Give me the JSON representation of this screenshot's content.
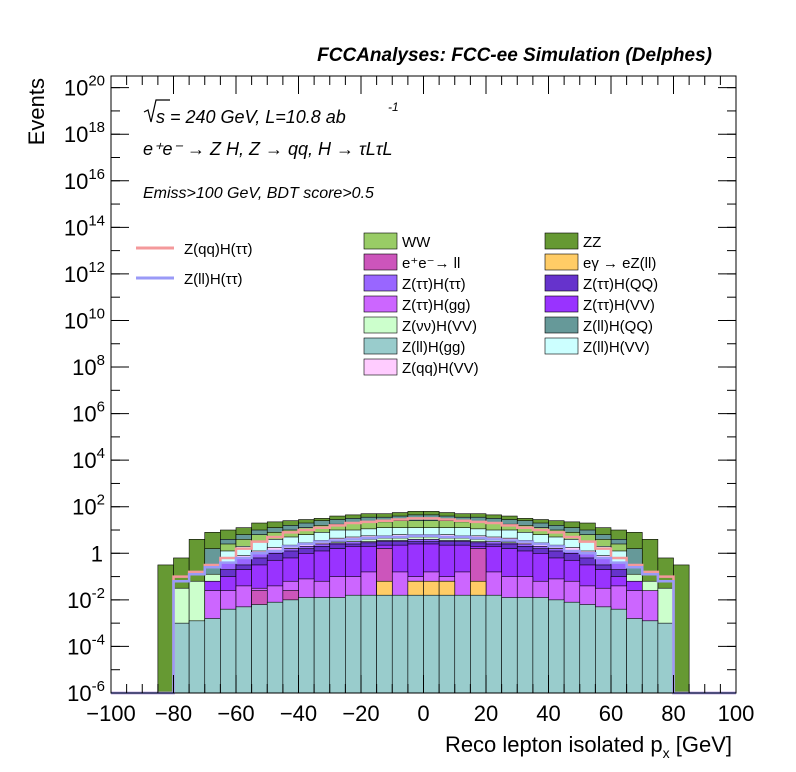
{
  "header": {
    "title": "FCCAnalyses: FCC-ee Simulation (Delphes)"
  },
  "annotations": {
    "sqrt_s": "s = 240 GeV, L=10.8 ab",
    "lumi_exp": "-1",
    "process": "e⁺e⁻ → Z H, Z → qq, H → τLτL",
    "cuts": "Emiss>100 GeV, BDT score>0.5"
  },
  "axes": {
    "xlabel": "Reco lepton isolated p",
    "xlabel_sub": "x",
    "xlabel_unit": " [GeV]",
    "ylabel": "Events"
  },
  "legend": {
    "signals": [
      {
        "name": "Z(qq)H(ττ)",
        "color": "#f4999b"
      },
      {
        "name": "Z(ll)H(ττ)",
        "color": "#9a9af7"
      }
    ],
    "backgrounds": [
      {
        "name": "WW",
        "color": "#99cc66"
      },
      {
        "name": "ZZ",
        "color": "#669933"
      },
      {
        "name": "e⁺e⁻→ ll",
        "color": "#cc55bb"
      },
      {
        "name": "eγ → eZ(ll)",
        "color": "#ffcc66"
      },
      {
        "name": "Z(ττ)H(ττ)",
        "color": "#9966ff"
      },
      {
        "name": "Z(ττ)H(QQ)",
        "color": "#6633cc"
      },
      {
        "name": "Z(ττ)H(gg)",
        "color": "#cc66ff"
      },
      {
        "name": "Z(ττ)H(VV)",
        "color": "#9933ff"
      },
      {
        "name": "Z(νν)H(VV)",
        "color": "#ccffcc"
      },
      {
        "name": "Z(ll)H(QQ)",
        "color": "#669999"
      },
      {
        "name": "Z(ll)H(gg)",
        "color": "#99cccc"
      },
      {
        "name": "Z(ll)H(VV)",
        "color": "#ccffff"
      },
      {
        "name": "Z(qq)H(VV)",
        "color": "#ffccff"
      }
    ]
  },
  "chart_data": {
    "type": "area",
    "log_y": true,
    "xlim": [
      -100,
      100
    ],
    "ylim_exp": [
      -6,
      20.5
    ],
    "x_ticks": [
      -100,
      -80,
      -60,
      -40,
      -20,
      0,
      20,
      40,
      60,
      80,
      100
    ],
    "y_ticks": [
      {
        "e": -6,
        "label": "10",
        "sup": "-6"
      },
      {
        "e": -4,
        "label": "10",
        "sup": "-4"
      },
      {
        "e": -2,
        "label": "10",
        "sup": "-2"
      },
      {
        "e": 0,
        "label": "1",
        "sup": ""
      },
      {
        "e": 2,
        "label": "10",
        "sup": "2"
      },
      {
        "e": 4,
        "label": "10",
        "sup": "4"
      },
      {
        "e": 6,
        "label": "10",
        "sup": "6"
      },
      {
        "e": 8,
        "label": "10",
        "sup": "8"
      },
      {
        "e": 10,
        "label": "10",
        "sup": "10"
      },
      {
        "e": 12,
        "label": "10",
        "sup": "12"
      },
      {
        "e": 14,
        "label": "10",
        "sup": "14"
      },
      {
        "e": 16,
        "label": "10",
        "sup": "16"
      },
      {
        "e": 18,
        "label": "10",
        "sup": "18"
      },
      {
        "e": 20,
        "label": "10",
        "sup": "20"
      }
    ],
    "bin_width": 5,
    "bin_low_edges": [
      -85,
      -80,
      -75,
      -70,
      -65,
      -60,
      -55,
      -50,
      -45,
      -40,
      -35,
      -30,
      -25,
      -20,
      -15,
      -10,
      -5,
      0,
      5,
      10,
      15,
      20,
      25,
      30,
      35,
      40,
      45,
      50,
      55,
      60,
      65,
      70,
      75,
      80
    ],
    "stack_order": [
      "Z(ll)H(gg)",
      "eγ → eZ(ll)",
      "e⁺e⁻→ ll",
      "Z(ττ)H(gg)",
      "Z(ττ)H(VV)",
      "Z(ττ)H(QQ)",
      "Z(ττ)H(ττ)",
      "Z(νν)H(VV)",
      "Z(qq)H(VV)",
      "Z(ll)H(VV)",
      "WW",
      "Z(ll)H(QQ)",
      "ZZ"
    ],
    "stack_totals_log10": [
      -0.5,
      -0.2,
      0.6,
      0.9,
      1.0,
      1.1,
      1.3,
      1.35,
      1.4,
      1.45,
      1.5,
      1.6,
      1.65,
      1.7,
      1.7,
      1.75,
      1.8,
      1.8,
      1.75,
      1.7,
      1.7,
      1.65,
      1.6,
      1.5,
      1.45,
      1.4,
      1.35,
      1.3,
      1.1,
      1.0,
      0.9,
      0.6,
      -0.2,
      -0.5
    ],
    "component_top_log10": {
      "Z(ll)H(gg)": [
        -7,
        -3.0,
        -2.9,
        -2.8,
        -2.4,
        -2.3,
        -2.2,
        -2.1,
        -2.0,
        -1.9,
        -1.9,
        -1.9,
        -1.8,
        -1.8,
        -1.8,
        -1.8,
        -1.8,
        -1.8,
        -1.8,
        -1.8,
        -1.8,
        -1.8,
        -1.9,
        -1.9,
        -1.9,
        -2.0,
        -2.1,
        -2.2,
        -2.3,
        -2.4,
        -2.8,
        -2.9,
        -3.0,
        -7
      ],
      "eγ → eZ(ll)": [
        -7,
        -7,
        -7,
        -7,
        -7,
        -7,
        -7,
        -7,
        -7,
        -7,
        -7,
        -7,
        -7,
        -7,
        -1.2,
        -7,
        -1.2,
        -1.2,
        -1.2,
        -7,
        -1.2,
        -7,
        -7,
        -7,
        -7,
        -7,
        -7,
        -7,
        -7,
        -7,
        -7,
        -7,
        -7,
        -7
      ],
      "e⁺e⁻→ ll": [
        -7,
        -7,
        -7,
        -7,
        -7,
        -7,
        -1.6,
        -7,
        -1.6,
        -7,
        -7,
        -7,
        -7,
        -7,
        0.2,
        -7,
        -1.2,
        -7,
        -1.2,
        -7,
        0.2,
        -7,
        -7,
        -7,
        -7,
        -7,
        -7,
        -7,
        -7,
        -7,
        -7,
        -7,
        -7,
        -7
      ],
      "Z(ττ)H(gg)": [
        -7,
        -7,
        -7,
        -1.6,
        -1.6,
        -1.4,
        -1.5,
        -1.4,
        -1.2,
        -1.1,
        -1.2,
        -1.0,
        -1.0,
        -0.8,
        -0.2,
        -0.8,
        -1.0,
        -0.8,
        -1.0,
        -0.8,
        -0.2,
        -0.8,
        -1.0,
        -1.0,
        -1.2,
        -1.1,
        -1.2,
        -1.4,
        -1.5,
        -1.4,
        -1.6,
        -1.6,
        -7,
        -7
      ],
      "Z(ττ)H(VV)": [
        -7,
        -7,
        -7,
        -1.2,
        -1.0,
        -0.7,
        -0.5,
        -0.3,
        -0.2,
        0.0,
        0.1,
        0.2,
        0.3,
        0.3,
        0.35,
        0.35,
        0.4,
        0.4,
        0.35,
        0.35,
        0.3,
        0.3,
        0.2,
        0.1,
        0.0,
        -0.2,
        -0.3,
        -0.5,
        -0.7,
        -1.0,
        -1.2,
        -7,
        -7,
        -7
      ],
      "Z(ττ)H(QQ)": [
        -7,
        -7,
        -7,
        -7,
        -0.7,
        -0.5,
        -0.2,
        0.0,
        0.1,
        0.2,
        0.3,
        0.4,
        0.4,
        0.45,
        0.5,
        0.5,
        0.5,
        0.5,
        0.5,
        0.5,
        0.45,
        0.4,
        0.4,
        0.3,
        0.2,
        0.1,
        0.0,
        -0.2,
        -0.5,
        -0.7,
        -7,
        -7,
        -7,
        -7
      ],
      "Z(ττ)H(ττ)": [
        -7,
        -7,
        -7,
        -7,
        -0.4,
        -0.2,
        0.0,
        0.1,
        0.2,
        0.3,
        0.4,
        0.45,
        0.5,
        0.5,
        0.55,
        0.55,
        0.6,
        0.6,
        0.55,
        0.55,
        0.5,
        0.5,
        0.45,
        0.4,
        0.3,
        0.2,
        0.1,
        0.0,
        -0.2,
        -0.4,
        -7,
        -7,
        -7,
        -7
      ],
      "Z(νν)H(VV)": [
        -7,
        -1.5,
        -1.2,
        -0.9,
        -0.6,
        -0.4,
        -0.2,
        0.0,
        0.2,
        0.3,
        0.4,
        0.5,
        0.6,
        0.6,
        0.65,
        0.65,
        0.7,
        0.7,
        0.65,
        0.65,
        0.6,
        0.6,
        0.5,
        0.4,
        0.3,
        0.2,
        0.0,
        -0.2,
        -0.4,
        -0.6,
        -0.9,
        -1.2,
        -1.5,
        -7
      ],
      "Z(qq)H(VV)": [
        -7,
        -7,
        -7,
        -7,
        -7,
        -0.1,
        0.1,
        0.25,
        0.35,
        0.45,
        0.55,
        0.65,
        0.7,
        0.75,
        0.75,
        0.8,
        0.8,
        0.8,
        0.8,
        0.75,
        0.75,
        0.7,
        0.65,
        0.55,
        0.45,
        0.35,
        0.25,
        0.1,
        -0.1,
        -7,
        -7,
        -7,
        -7,
        -7
      ],
      "Z(ll)H(VV)": [
        -7,
        -7,
        -7,
        -7,
        0.1,
        0.3,
        0.5,
        0.6,
        0.7,
        0.8,
        0.9,
        1.0,
        1.0,
        1.05,
        1.1,
        1.1,
        1.1,
        1.1,
        1.1,
        1.1,
        1.05,
        1.0,
        1.0,
        0.9,
        0.8,
        0.7,
        0.6,
        0.5,
        0.3,
        0.1,
        -7,
        -7,
        -7,
        -7
      ],
      "WW": [
        -7,
        -7,
        -7,
        -7,
        0.4,
        0.6,
        0.8,
        0.9,
        1.0,
        1.1,
        1.2,
        1.25,
        1.3,
        1.35,
        1.35,
        1.4,
        1.4,
        1.4,
        1.4,
        1.35,
        1.35,
        1.3,
        1.25,
        1.2,
        1.1,
        1.0,
        0.9,
        0.8,
        0.6,
        0.4,
        -7,
        -7,
        -7,
        -7
      ],
      "Z(ll)H(QQ)": [
        -7,
        -7,
        -7,
        0.2,
        0.6,
        0.8,
        1.0,
        1.1,
        1.2,
        1.3,
        1.4,
        1.45,
        1.5,
        1.55,
        1.55,
        1.6,
        1.65,
        1.65,
        1.6,
        1.55,
        1.55,
        1.5,
        1.45,
        1.4,
        1.3,
        1.2,
        1.1,
        1.0,
        0.8,
        0.6,
        0.2,
        -7,
        -7,
        -7
      ],
      "ZZ": [
        -0.5,
        -0.2,
        0.6,
        0.9,
        1.0,
        1.1,
        1.3,
        1.35,
        1.4,
        1.45,
        1.5,
        1.6,
        1.65,
        1.7,
        1.7,
        1.75,
        1.8,
        1.8,
        1.75,
        1.7,
        1.7,
        1.65,
        1.6,
        1.5,
        1.45,
        1.4,
        1.35,
        1.3,
        1.1,
        1.0,
        0.9,
        0.6,
        -0.2,
        -0.5
      ]
    },
    "signal_lines_log10": {
      "Z(qq)H(ττ)": [
        -7,
        -1.0,
        -0.8,
        -0.5,
        -0.2,
        0.2,
        0.5,
        0.7,
        0.9,
        1.0,
        1.1,
        1.2,
        1.3,
        1.35,
        1.4,
        1.45,
        1.5,
        1.5,
        1.45,
        1.4,
        1.35,
        1.3,
        1.2,
        1.1,
        1.0,
        0.9,
        0.7,
        0.5,
        0.2,
        -0.2,
        -0.5,
        -0.8,
        -1.0,
        -7
      ],
      "Z(ll)H(ττ)": [
        -7,
        -1.2,
        -0.9,
        -0.6,
        -0.4,
        -0.2,
        0.0,
        0.1,
        0.3,
        0.4,
        0.5,
        0.55,
        0.6,
        0.65,
        0.7,
        0.7,
        0.75,
        0.75,
        0.7,
        0.7,
        0.65,
        0.6,
        0.55,
        0.5,
        0.4,
        0.3,
        0.1,
        0.0,
        -0.2,
        -0.4,
        -0.6,
        -0.9,
        -1.2,
        -7
      ]
    }
  }
}
